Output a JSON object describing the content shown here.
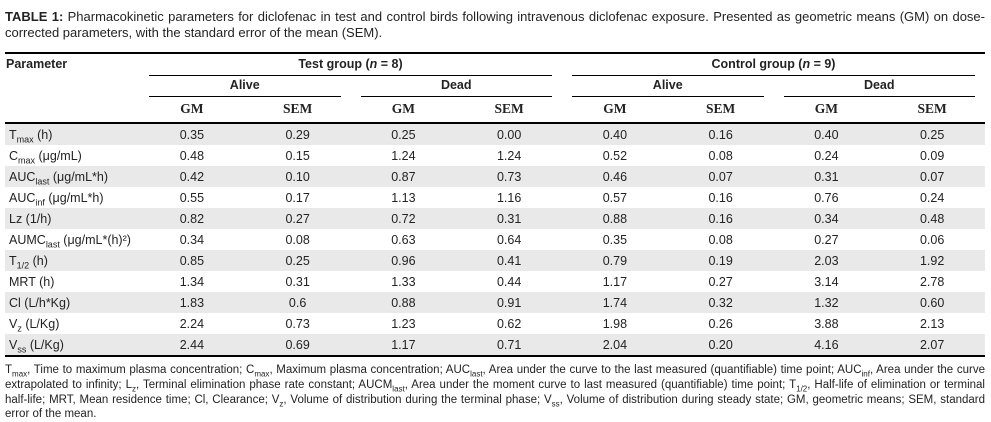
{
  "caption": {
    "label": "TABLE 1:",
    "text": " Pharmacokinetic parameters for diclofenac in test and control birds following intravenous diclofenac exposure. Presented as geometric means (GM) on dose-corrected parameters, with the standard error of the mean (SEM)."
  },
  "colors": {
    "stripe": "#e9e9e9",
    "rule": "#000000",
    "text": "#232323"
  },
  "table": {
    "param_header": "Parameter",
    "groups": [
      {
        "pre": "Test group (",
        "italic": "n",
        "post": " = 8)",
        "subgroups": [
          "Alive",
          "Dead"
        ]
      },
      {
        "pre": "Control group (",
        "italic": "n",
        "post": " = 9)",
        "subgroups": [
          "Alive",
          "Dead"
        ]
      }
    ],
    "measure_headers": [
      "GM",
      "SEM"
    ],
    "rows": [
      {
        "param": [
          {
            "t": "T"
          },
          {
            "s": "max"
          },
          {
            "t": " (h)"
          }
        ],
        "values": [
          "0.35",
          "0.29",
          "0.25",
          "0.00",
          "0.40",
          "0.16",
          "0.40",
          "0.25"
        ]
      },
      {
        "param": [
          {
            "t": "C"
          },
          {
            "s": "max"
          },
          {
            "t": " (μg/mL)"
          }
        ],
        "values": [
          "0.48",
          "0.15",
          "1.24",
          "1.24",
          "0.52",
          "0.08",
          "0.24",
          "0.09"
        ]
      },
      {
        "param": [
          {
            "t": "AUC"
          },
          {
            "s": "last"
          },
          {
            "t": " (μg/mL*h)"
          }
        ],
        "values": [
          "0.42",
          "0.10",
          "0.87",
          "0.73",
          "0.46",
          "0.07",
          "0.31",
          "0.07"
        ]
      },
      {
        "param": [
          {
            "t": "AUC"
          },
          {
            "s": "inf"
          },
          {
            "t": " (μg/mL*h)"
          }
        ],
        "values": [
          "0.55",
          "0.17",
          "1.13",
          "1.16",
          "0.57",
          "0.16",
          "0.76",
          "0.24"
        ]
      },
      {
        "param": [
          {
            "t": "Lz (1/h)"
          }
        ],
        "values": [
          "0.82",
          "0.27",
          "0.72",
          "0.31",
          "0.88",
          "0.16",
          "0.34",
          "0.48"
        ]
      },
      {
        "param": [
          {
            "t": "AUMC"
          },
          {
            "s": "last"
          },
          {
            "t": " (μg/mL*(h)²)"
          }
        ],
        "values": [
          "0.34",
          "0.08",
          "0.63",
          "0.64",
          "0.35",
          "0.08",
          "0.27",
          "0.06"
        ]
      },
      {
        "param": [
          {
            "t": "T"
          },
          {
            "s": "1/2"
          },
          {
            "t": " (h)"
          }
        ],
        "values": [
          "0.85",
          "0.25",
          "0.96",
          "0.41",
          "0.79",
          "0.19",
          "2.03",
          "1.92"
        ]
      },
      {
        "param": [
          {
            "t": "MRT (h)"
          }
        ],
        "values": [
          "1.34",
          "0.31",
          "1.33",
          "0.44",
          "1.17",
          "0.27",
          "3.14",
          "2.78"
        ]
      },
      {
        "param": [
          {
            "t": "Cl (L/h*Kg)"
          }
        ],
        "values": [
          "1.83",
          "0.6",
          "0.88",
          "0.91",
          "1.74",
          "0.32",
          "1.32",
          "0.60"
        ]
      },
      {
        "param": [
          {
            "t": "V"
          },
          {
            "s": "z"
          },
          {
            "t": " (L/Kg)"
          }
        ],
        "values": [
          "2.24",
          "0.73",
          "1.23",
          "0.62",
          "1.98",
          "0.26",
          "3.88",
          "2.13"
        ]
      },
      {
        "param": [
          {
            "t": "V"
          },
          {
            "s": "ss"
          },
          {
            "t": " (L/Kg)"
          }
        ],
        "values": [
          "2.44",
          "0.69",
          "1.17",
          "0.71",
          "2.04",
          "0.20",
          "4.16",
          "2.07"
        ]
      }
    ]
  },
  "footnote": [
    {
      "t": "T"
    },
    {
      "s": "max"
    },
    {
      "t": ", Time to maximum plasma concentration; C"
    },
    {
      "s": "max"
    },
    {
      "t": ", Maximum plasma concentration; AUC"
    },
    {
      "s": "last"
    },
    {
      "t": ", Area under the curve to the last measured (quantifiable) time point; AUC"
    },
    {
      "s": "inf"
    },
    {
      "t": ", Area under the curve extrapolated to infinity; L"
    },
    {
      "s": "z"
    },
    {
      "t": ", Terminal elimination phase rate constant; AUCM"
    },
    {
      "s": "last"
    },
    {
      "t": ", Area under the moment curve to last measured (quantifiable) time point; T"
    },
    {
      "s": "1/2"
    },
    {
      "t": ", Half-life of elimination or terminal half-life; MRT, Mean residence time; Cl, Clearance; V"
    },
    {
      "s": "z"
    },
    {
      "t": ", Volume of distribution during the terminal phase; V"
    },
    {
      "s": "ss"
    },
    {
      "t": ", Volume of distribution during steady state; GM, geometric means; SEM, standard error of the mean."
    }
  ]
}
